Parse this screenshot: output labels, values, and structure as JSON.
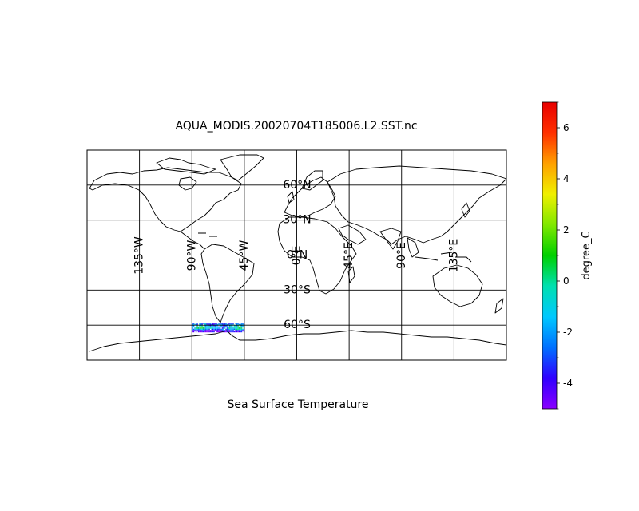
{
  "figure": {
    "title": "AQUA_MODIS.20020704T185006.L2.SST.nc",
    "xlabel": "Sea Surface Temperature"
  },
  "map": {
    "projection": "PlateCarree",
    "extent_lon": [
      -180,
      180
    ],
    "extent_lat": [
      -90,
      90
    ],
    "gridlines": true,
    "lon_labels": [
      {
        "lon": -135,
        "text": "135°W"
      },
      {
        "lon": -90,
        "text": "90°W"
      },
      {
        "lon": -45,
        "text": "45°W"
      },
      {
        "lon": 0,
        "text": "0°E"
      },
      {
        "lon": 45,
        "text": "45°E"
      },
      {
        "lon": 90,
        "text": "90°E"
      },
      {
        "lon": 135,
        "text": "135°E"
      }
    ],
    "lat_labels": [
      {
        "lat": 60,
        "text": "60°N"
      },
      {
        "lat": 30,
        "text": "30°N"
      },
      {
        "lat": 0,
        "text": "0°N"
      },
      {
        "lat": -30,
        "text": "30°S"
      },
      {
        "lat": -60,
        "text": "60°S"
      }
    ],
    "swath": {
      "lon_range": [
        -90,
        -45
      ],
      "lat_range": [
        -66,
        -58
      ],
      "value_range": [
        -5,
        7
      ],
      "units": "degree_C"
    }
  },
  "colorbar": {
    "label": "degree_C",
    "vmin": -5,
    "vmax": 7,
    "colormap": "nipy_spectral",
    "ticks": [
      {
        "value": 6,
        "text": "6"
      },
      {
        "value": 4,
        "text": "4"
      },
      {
        "value": 2,
        "text": "2"
      },
      {
        "value": 0,
        "text": "0"
      },
      {
        "value": -2,
        "text": "-2"
      },
      {
        "value": -4,
        "text": "-4"
      }
    ]
  },
  "colors": {
    "cmap_stops": [
      "#8a00ff",
      "#3000ff",
      "#0070ff",
      "#00c8ff",
      "#00e0b0",
      "#00d000",
      "#80e800",
      "#f0f000",
      "#ffa000",
      "#ff3000",
      "#e80000"
    ]
  }
}
